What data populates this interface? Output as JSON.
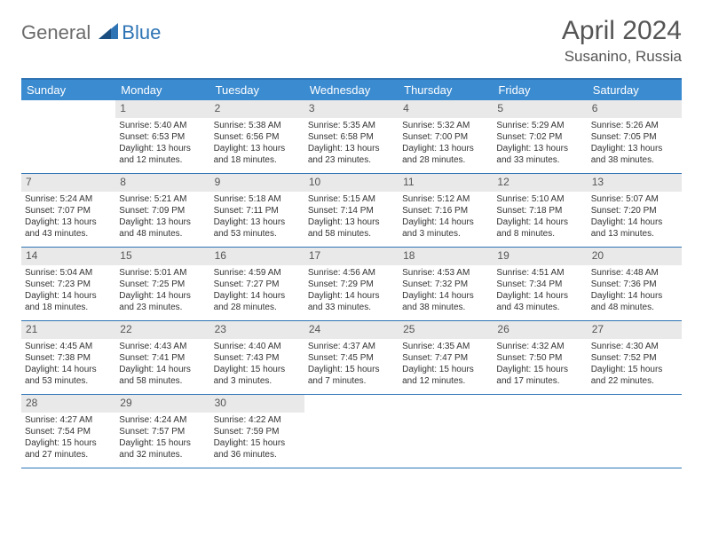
{
  "logo": {
    "text_general": "General",
    "text_blue": "Blue"
  },
  "title": "April 2024",
  "location": "Susanino, Russia",
  "colors": {
    "header_bg": "#3b8bd0",
    "border": "#2e74b5",
    "daynum_bg": "#e9e9e9",
    "text": "#333333"
  },
  "day_headers": [
    "Sunday",
    "Monday",
    "Tuesday",
    "Wednesday",
    "Thursday",
    "Friday",
    "Saturday"
  ],
  "weeks": [
    [
      {
        "n": "",
        "sr": "",
        "ss": "",
        "dl": ""
      },
      {
        "n": "1",
        "sr": "Sunrise: 5:40 AM",
        "ss": "Sunset: 6:53 PM",
        "dl": "Daylight: 13 hours and 12 minutes."
      },
      {
        "n": "2",
        "sr": "Sunrise: 5:38 AM",
        "ss": "Sunset: 6:56 PM",
        "dl": "Daylight: 13 hours and 18 minutes."
      },
      {
        "n": "3",
        "sr": "Sunrise: 5:35 AM",
        "ss": "Sunset: 6:58 PM",
        "dl": "Daylight: 13 hours and 23 minutes."
      },
      {
        "n": "4",
        "sr": "Sunrise: 5:32 AM",
        "ss": "Sunset: 7:00 PM",
        "dl": "Daylight: 13 hours and 28 minutes."
      },
      {
        "n": "5",
        "sr": "Sunrise: 5:29 AM",
        "ss": "Sunset: 7:02 PM",
        "dl": "Daylight: 13 hours and 33 minutes."
      },
      {
        "n": "6",
        "sr": "Sunrise: 5:26 AM",
        "ss": "Sunset: 7:05 PM",
        "dl": "Daylight: 13 hours and 38 minutes."
      }
    ],
    [
      {
        "n": "7",
        "sr": "Sunrise: 5:24 AM",
        "ss": "Sunset: 7:07 PM",
        "dl": "Daylight: 13 hours and 43 minutes."
      },
      {
        "n": "8",
        "sr": "Sunrise: 5:21 AM",
        "ss": "Sunset: 7:09 PM",
        "dl": "Daylight: 13 hours and 48 minutes."
      },
      {
        "n": "9",
        "sr": "Sunrise: 5:18 AM",
        "ss": "Sunset: 7:11 PM",
        "dl": "Daylight: 13 hours and 53 minutes."
      },
      {
        "n": "10",
        "sr": "Sunrise: 5:15 AM",
        "ss": "Sunset: 7:14 PM",
        "dl": "Daylight: 13 hours and 58 minutes."
      },
      {
        "n": "11",
        "sr": "Sunrise: 5:12 AM",
        "ss": "Sunset: 7:16 PM",
        "dl": "Daylight: 14 hours and 3 minutes."
      },
      {
        "n": "12",
        "sr": "Sunrise: 5:10 AM",
        "ss": "Sunset: 7:18 PM",
        "dl": "Daylight: 14 hours and 8 minutes."
      },
      {
        "n": "13",
        "sr": "Sunrise: 5:07 AM",
        "ss": "Sunset: 7:20 PM",
        "dl": "Daylight: 14 hours and 13 minutes."
      }
    ],
    [
      {
        "n": "14",
        "sr": "Sunrise: 5:04 AM",
        "ss": "Sunset: 7:23 PM",
        "dl": "Daylight: 14 hours and 18 minutes."
      },
      {
        "n": "15",
        "sr": "Sunrise: 5:01 AM",
        "ss": "Sunset: 7:25 PM",
        "dl": "Daylight: 14 hours and 23 minutes."
      },
      {
        "n": "16",
        "sr": "Sunrise: 4:59 AM",
        "ss": "Sunset: 7:27 PM",
        "dl": "Daylight: 14 hours and 28 minutes."
      },
      {
        "n": "17",
        "sr": "Sunrise: 4:56 AM",
        "ss": "Sunset: 7:29 PM",
        "dl": "Daylight: 14 hours and 33 minutes."
      },
      {
        "n": "18",
        "sr": "Sunrise: 4:53 AM",
        "ss": "Sunset: 7:32 PM",
        "dl": "Daylight: 14 hours and 38 minutes."
      },
      {
        "n": "19",
        "sr": "Sunrise: 4:51 AM",
        "ss": "Sunset: 7:34 PM",
        "dl": "Daylight: 14 hours and 43 minutes."
      },
      {
        "n": "20",
        "sr": "Sunrise: 4:48 AM",
        "ss": "Sunset: 7:36 PM",
        "dl": "Daylight: 14 hours and 48 minutes."
      }
    ],
    [
      {
        "n": "21",
        "sr": "Sunrise: 4:45 AM",
        "ss": "Sunset: 7:38 PM",
        "dl": "Daylight: 14 hours and 53 minutes."
      },
      {
        "n": "22",
        "sr": "Sunrise: 4:43 AM",
        "ss": "Sunset: 7:41 PM",
        "dl": "Daylight: 14 hours and 58 minutes."
      },
      {
        "n": "23",
        "sr": "Sunrise: 4:40 AM",
        "ss": "Sunset: 7:43 PM",
        "dl": "Daylight: 15 hours and 3 minutes."
      },
      {
        "n": "24",
        "sr": "Sunrise: 4:37 AM",
        "ss": "Sunset: 7:45 PM",
        "dl": "Daylight: 15 hours and 7 minutes."
      },
      {
        "n": "25",
        "sr": "Sunrise: 4:35 AM",
        "ss": "Sunset: 7:47 PM",
        "dl": "Daylight: 15 hours and 12 minutes."
      },
      {
        "n": "26",
        "sr": "Sunrise: 4:32 AM",
        "ss": "Sunset: 7:50 PM",
        "dl": "Daylight: 15 hours and 17 minutes."
      },
      {
        "n": "27",
        "sr": "Sunrise: 4:30 AM",
        "ss": "Sunset: 7:52 PM",
        "dl": "Daylight: 15 hours and 22 minutes."
      }
    ],
    [
      {
        "n": "28",
        "sr": "Sunrise: 4:27 AM",
        "ss": "Sunset: 7:54 PM",
        "dl": "Daylight: 15 hours and 27 minutes."
      },
      {
        "n": "29",
        "sr": "Sunrise: 4:24 AM",
        "ss": "Sunset: 7:57 PM",
        "dl": "Daylight: 15 hours and 32 minutes."
      },
      {
        "n": "30",
        "sr": "Sunrise: 4:22 AM",
        "ss": "Sunset: 7:59 PM",
        "dl": "Daylight: 15 hours and 36 minutes."
      },
      {
        "n": "",
        "sr": "",
        "ss": "",
        "dl": ""
      },
      {
        "n": "",
        "sr": "",
        "ss": "",
        "dl": ""
      },
      {
        "n": "",
        "sr": "",
        "ss": "",
        "dl": ""
      },
      {
        "n": "",
        "sr": "",
        "ss": "",
        "dl": ""
      }
    ]
  ]
}
